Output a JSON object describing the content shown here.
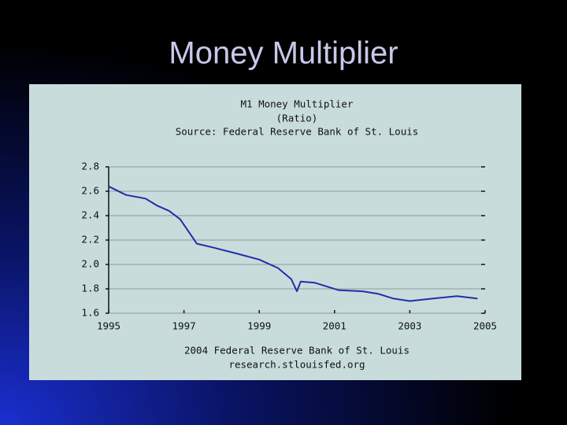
{
  "slide_title": "Money Multiplier",
  "chart_data": {
    "type": "line",
    "title": "M1 Money Multiplier",
    "subtitle": "(Ratio)",
    "source": "Source: Federal Reserve Bank of St. Louis",
    "footer": [
      "2004 Federal Reserve Bank of St. Louis",
      "research.stlouisfed.org"
    ],
    "x": [
      1995.0,
      1995.46,
      1995.98,
      1996.3,
      1996.6,
      1996.9,
      1997.34,
      1997.76,
      1998.4,
      1999.0,
      1999.5,
      1999.85,
      2000.0,
      2000.1,
      2000.48,
      2001.1,
      2001.74,
      2002.15,
      2002.57,
      2003.0,
      2003.6,
      2004.25,
      2004.8
    ],
    "values": [
      2.64,
      2.57,
      2.54,
      2.48,
      2.44,
      2.37,
      2.17,
      2.14,
      2.09,
      2.04,
      1.97,
      1.88,
      1.78,
      1.86,
      1.85,
      1.79,
      1.78,
      1.76,
      1.72,
      1.7,
      1.72,
      1.74,
      1.72
    ],
    "color": "#1f2fa8",
    "xlim": [
      1995,
      2005
    ],
    "xticks": [
      1995,
      1997,
      1999,
      2001,
      2003,
      2005
    ],
    "ylim": [
      1.6,
      2.8
    ],
    "yticks": [
      1.6,
      1.8,
      {
        "value": 2,
        "label": "2.0"
      },
      2.2,
      2.4,
      2.6,
      2.8
    ],
    "grid": true
  }
}
